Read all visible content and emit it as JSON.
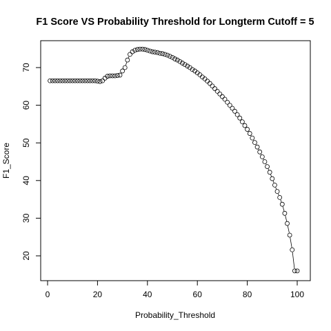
{
  "chart_data": {
    "type": "line",
    "title": "F1 Score VS Probability Threshold for Longterm Cutoff = 5",
    "xlabel": "Probability_Threshold",
    "ylabel": "F1_Score",
    "xlim": [
      0,
      100
    ],
    "ylim": [
      15,
      75
    ],
    "x_ticks": [
      0,
      20,
      40,
      60,
      80,
      100
    ],
    "y_ticks": [
      20,
      30,
      40,
      50,
      60,
      70
    ],
    "grid": false,
    "marker": "open-circle",
    "series": [
      {
        "x": [
          1,
          2,
          3,
          4,
          5,
          6,
          7,
          8,
          9,
          10,
          11,
          12,
          13,
          14,
          15,
          16,
          17,
          18,
          19,
          20,
          21,
          22,
          23,
          24,
          25,
          26,
          27,
          28,
          29,
          30,
          31,
          32,
          33,
          34,
          35,
          36,
          37,
          38,
          39,
          40,
          41,
          42,
          43,
          44,
          45,
          46,
          47,
          48,
          49,
          50,
          51,
          52,
          53,
          54,
          55,
          56,
          57,
          58,
          59,
          60,
          61,
          62,
          63,
          64,
          65,
          66,
          67,
          68,
          69,
          70,
          71,
          72,
          73,
          74,
          75,
          76,
          77,
          78,
          79,
          80,
          81,
          82,
          83,
          84,
          85,
          86,
          87,
          88,
          89,
          90,
          91,
          92,
          93,
          94,
          95,
          96,
          97,
          98,
          99,
          100
        ],
        "y": [
          66.5,
          66.5,
          66.5,
          66.5,
          66.5,
          66.5,
          66.5,
          66.5,
          66.5,
          66.5,
          66.5,
          66.5,
          66.5,
          66.5,
          66.5,
          66.5,
          66.5,
          66.5,
          66.5,
          66.4,
          66.3,
          66.5,
          67.2,
          67.7,
          67.8,
          67.8,
          67.8,
          67.9,
          68.0,
          69.1,
          70.0,
          72.0,
          73.5,
          74.2,
          74.6,
          74.8,
          74.9,
          74.9,
          74.8,
          74.6,
          74.4,
          74.2,
          74.1,
          74.0,
          73.8,
          73.7,
          73.5,
          73.3,
          73.0,
          72.7,
          72.3,
          72.0,
          71.6,
          71.2,
          70.8,
          70.4,
          70.0,
          69.5,
          69.1,
          68.6,
          68.1,
          67.5,
          67.0,
          66.4,
          65.8,
          65.1,
          64.4,
          63.7,
          63.0,
          62.3,
          61.6,
          60.8,
          60.0,
          59.2,
          58.4,
          57.5,
          56.6,
          55.6,
          54.6,
          53.6,
          52.5,
          51.3,
          50.1,
          48.9,
          47.6,
          46.3,
          45.0,
          43.7,
          42.2,
          40.5,
          38.8,
          37.1,
          35.5,
          33.7,
          31.3,
          28.6,
          25.5,
          21.6,
          16.0,
          16.0
        ]
      }
    ]
  }
}
